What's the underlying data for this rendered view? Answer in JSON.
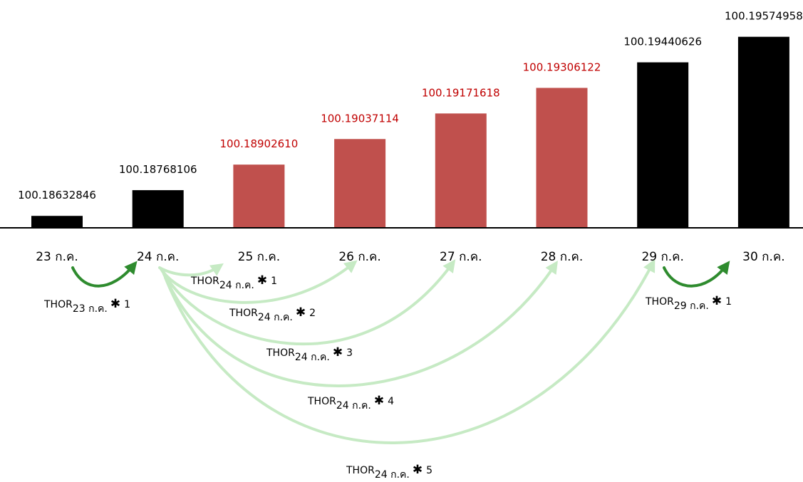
{
  "chart_data": {
    "type": "bar",
    "categories": [
      "23 ก.ค.",
      "24 ก.ค.",
      "25 ก.ค.",
      "26 ก.ค.",
      "27 ก.ค.",
      "28 ก.ค.",
      "29 ก.ค.",
      "30 ก.ค."
    ],
    "values": [
      100.18632846,
      100.18768106,
      100.1890261,
      100.19037114,
      100.19171618,
      100.19306122,
      100.19440626,
      100.19574958
    ],
    "value_labels": [
      "100.18632846",
      "100.18768106",
      "100.18902610",
      "100.19037114",
      "100.19171618",
      "100.19306122",
      "100.19440626",
      "100.19574958"
    ],
    "highlighted": [
      false,
      false,
      true,
      true,
      true,
      true,
      false,
      false
    ],
    "annotations": [
      {
        "from": 0,
        "to": 1,
        "label": {
          "main": "THOR",
          "sub": "23 ก.ค.",
          "star": "✱",
          "mult": "1"
        }
      },
      {
        "from": 1,
        "to": 2,
        "label": {
          "main": "THOR",
          "sub": "24 ก.ค.",
          "star": "✱",
          "mult": "1"
        }
      },
      {
        "from": 1,
        "to": 3,
        "label": {
          "main": "THOR",
          "sub": "24 ก.ค.",
          "star": "✱",
          "mult": "2"
        }
      },
      {
        "from": 1,
        "to": 4,
        "label": {
          "main": "THOR",
          "sub": "24 ก.ค.",
          "star": "✱",
          "mult": "3"
        }
      },
      {
        "from": 1,
        "to": 5,
        "label": {
          "main": "THOR",
          "sub": "24 ก.ค.",
          "star": "✱",
          "mult": "4"
        }
      },
      {
        "from": 1,
        "to": 6,
        "label": {
          "main": "THOR",
          "sub": "24 ก.ค.",
          "star": "✱",
          "mult": "5"
        }
      },
      {
        "from": 6,
        "to": 7,
        "label": {
          "main": "THOR",
          "sub": "29 ก.ค.",
          "star": "✱",
          "mult": "1"
        }
      }
    ]
  },
  "colors": {
    "normal_bar": "#000000",
    "highlight_bar": "#c0504d",
    "normal_label": "#000000",
    "highlight_label": "#c00000",
    "arrow_strong": "#2e8b2e",
    "arrow_light": "#c6eac4"
  }
}
